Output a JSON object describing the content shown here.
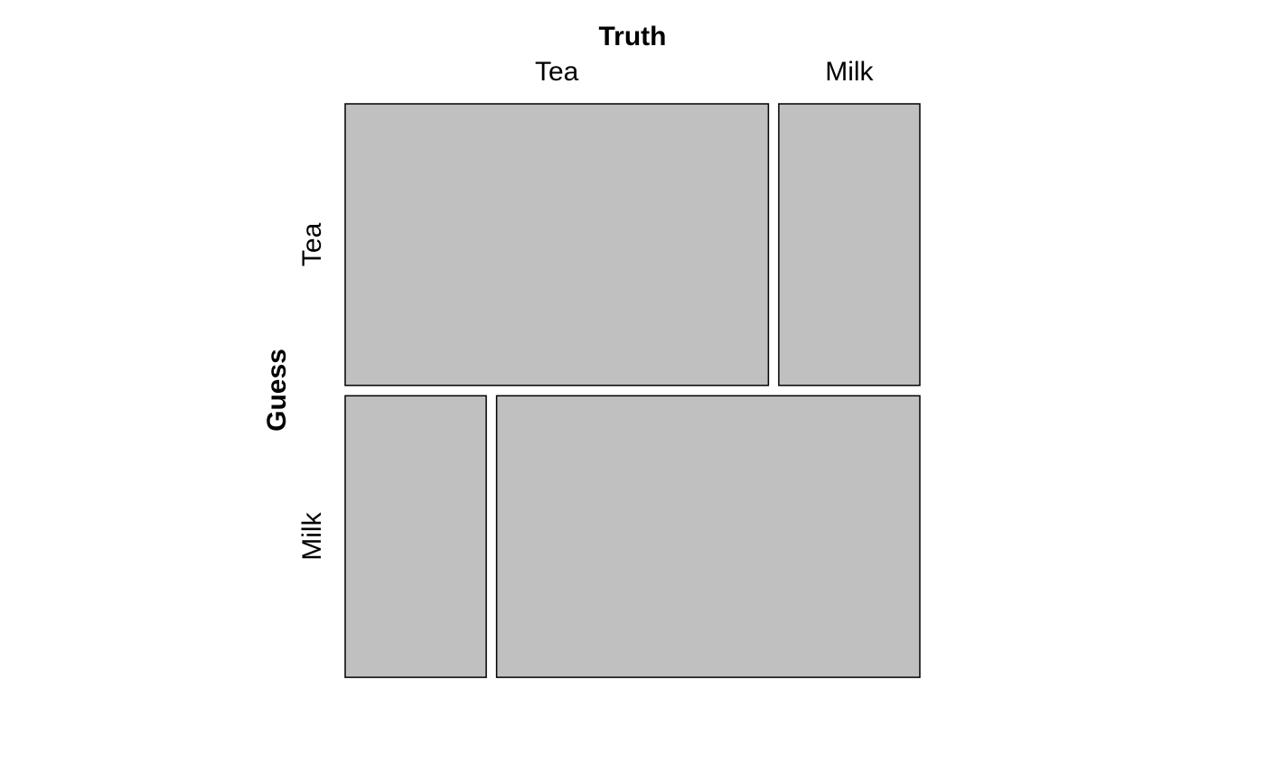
{
  "chart_data": {
    "type": "mosaic",
    "title": "",
    "column_variable": "Truth",
    "row_variable": "Guess",
    "columns": [
      "Tea",
      "Milk"
    ],
    "rows": [
      "Tea",
      "Milk"
    ],
    "counts": [
      [
        3,
        1
      ],
      [
        1,
        3
      ]
    ],
    "colors": {
      "tile_fill": "#c0c0c0",
      "tile_border": "#000000",
      "background": "#ffffff"
    }
  }
}
